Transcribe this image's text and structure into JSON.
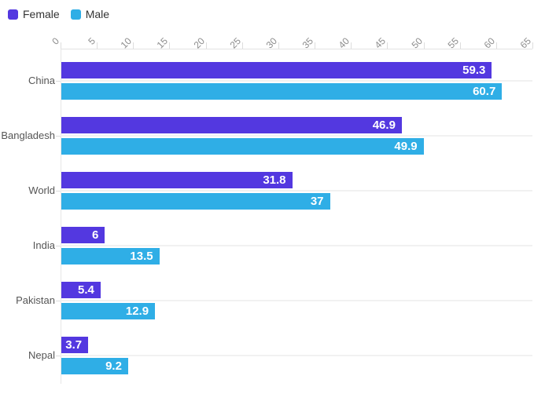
{
  "colors": {
    "female": "#5338E0",
    "male": "#2FAEE6",
    "value_text": "#FFFFFF",
    "axis_line": "#E3E3E3",
    "gridline": "#F1F1F1",
    "tick": "#DDDDDD",
    "axis_label_text": "#8C8C8C",
    "category_text": "#555555",
    "legend_text": "#333333",
    "background": "#FFFFFF"
  },
  "legend": {
    "items": [
      {
        "label": "Female",
        "color": "#5338E0"
      },
      {
        "label": "Male",
        "color": "#2FAEE6"
      }
    ]
  },
  "chart_data": {
    "type": "bar",
    "orientation": "horizontal",
    "title": "",
    "xlabel": "",
    "ylabel": "",
    "categories": [
      "China",
      "Bangladesh",
      "World",
      "India",
      "Pakistan",
      "Nepal"
    ],
    "series": [
      {
        "name": "Female",
        "color": "#5338E0",
        "values": [
          59.3,
          46.9,
          31.8,
          6,
          5.4,
          3.7
        ]
      },
      {
        "name": "Male",
        "color": "#2FAEE6",
        "values": [
          60.7,
          49.9,
          37,
          13.5,
          12.9,
          9.2
        ]
      }
    ],
    "xlim": [
      0,
      65
    ],
    "x_ticks": [
      0,
      5,
      10,
      15,
      20,
      25,
      30,
      35,
      40,
      45,
      50,
      55,
      60,
      65
    ],
    "x_tick_rotation_deg": -45,
    "axis_position": "top",
    "grid": "horizontal-category-lines-only",
    "legend_position": "top-left",
    "value_labels_inside_bars": true
  }
}
